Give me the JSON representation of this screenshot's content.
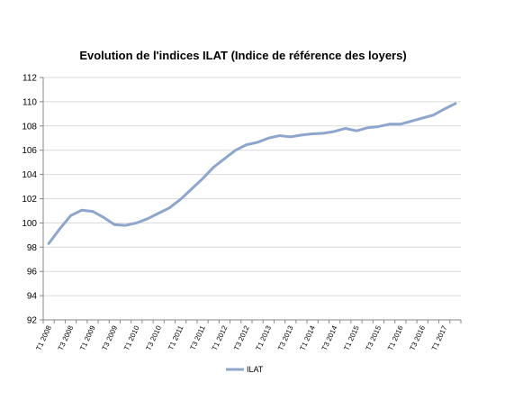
{
  "chart_data": {
    "type": "line",
    "title": "Evolution de l'indices ILAT (Indice de référence des loyers)",
    "xlabel": "",
    "ylabel": "",
    "ylim": [
      92,
      112
    ],
    "yticks": [
      92,
      94,
      96,
      98,
      100,
      102,
      104,
      106,
      108,
      110,
      112
    ],
    "grid": true,
    "legend_position": "bottom",
    "x": [
      "T1 2008",
      "T2 2008",
      "T3 2008",
      "T4 2008",
      "T1 2009",
      "T2 2009",
      "T3 2009",
      "T4 2009",
      "T1 2010",
      "T2 2010",
      "T3 2010",
      "T4 2010",
      "T1 2011",
      "T2 2011",
      "T3 2011",
      "T4 2011",
      "T1 2012",
      "T2 2012",
      "T3 2012",
      "T4 2012",
      "T1 2013",
      "T2 2013",
      "T3 2013",
      "T4 2013",
      "T1 2014",
      "T2 2014",
      "T3 2014",
      "T4 2014",
      "T1 2015",
      "T2 2015",
      "T3 2015",
      "T4 2015",
      "T1 2016",
      "T2 2016",
      "T3 2016",
      "T4 2016",
      "T1 2017",
      "T2 2017"
    ],
    "tick_labels": [
      "T1 2008",
      "T3 2008",
      "T1 2009",
      "T3 2009",
      "T1 2010",
      "T3 2010",
      "T1 2011",
      "T3 2011",
      "T1 2012",
      "T3 2012",
      "T1 2013",
      "T3 2013",
      "T1 2014",
      "T3 2014",
      "T1 2015",
      "T3 2015",
      "T1 2016",
      "T3 2016",
      "T1 2017"
    ],
    "series": [
      {
        "name": "ILAT",
        "color": "#8EA6CC",
        "values": [
          98.3,
          99.5,
          100.6,
          101.05,
          100.95,
          100.45,
          99.85,
          99.8,
          100.0,
          100.35,
          100.8,
          101.25,
          101.95,
          102.8,
          103.65,
          104.6,
          105.3,
          106.0,
          106.45,
          106.65,
          107.0,
          107.2,
          107.1,
          107.25,
          107.35,
          107.4,
          107.55,
          107.8,
          107.6,
          107.85,
          107.95,
          108.15,
          108.15,
          108.4,
          108.65,
          108.9,
          109.4,
          109.85
        ]
      }
    ]
  }
}
